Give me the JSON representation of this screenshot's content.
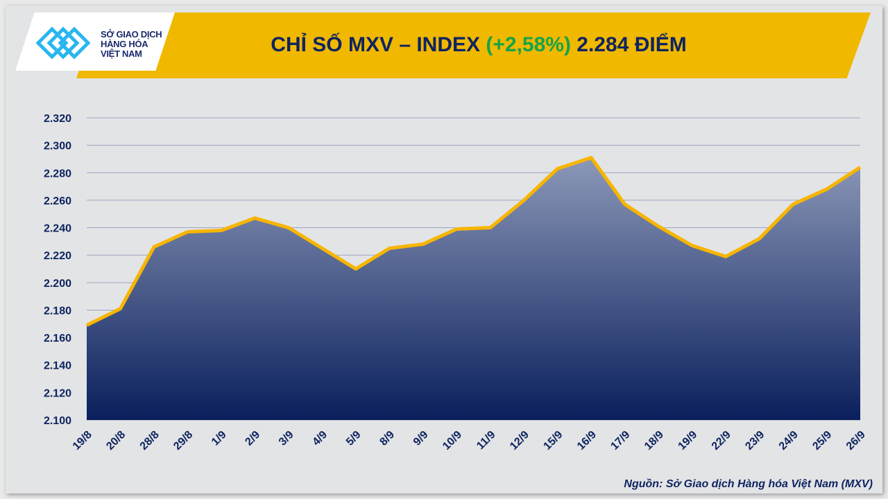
{
  "header": {
    "logo_lines": [
      "SỞ GIAO DỊCH",
      "HÀNG HÓA",
      "VIỆT NAM"
    ],
    "title_prefix": "CHỈ SỐ MXV – INDEX ",
    "title_change": "(+2,58%)",
    "title_suffix": " 2.284 ĐIỂM"
  },
  "source": "Nguồn: Sở Giao dịch Hàng hóa Việt Nam (MXV)",
  "colors": {
    "banner": "#f1b800",
    "line": "#f7b500",
    "fill_top": "#8c98b8",
    "fill_bottom": "#0a1f5c",
    "positive": "#16a34a",
    "text": "#0f2460"
  },
  "chart_data": {
    "type": "area",
    "title": "CHỈ SỐ MXV – INDEX (+2,58%) 2.284 ĐIỂM",
    "categories": [
      "19/8",
      "20/8",
      "28/8",
      "29/8",
      "1/9",
      "2/9",
      "3/9",
      "4/9",
      "5/9",
      "8/9",
      "9/9",
      "10/9",
      "11/9",
      "12/9",
      "15/9",
      "16/9",
      "17/9",
      "18/9",
      "19/9",
      "22/9",
      "23/9",
      "24/9",
      "25/9",
      "26/9"
    ],
    "values": [
      2169,
      2181,
      2226,
      2237,
      2238,
      2247,
      2240,
      2225,
      2210,
      2225,
      2228,
      2239,
      2240,
      2260,
      2283,
      2291,
      2257,
      2241,
      2227,
      2219,
      2232,
      2257,
      2268,
      2284
    ],
    "ylim": [
      2100,
      2320
    ],
    "yticks": [
      "2.100",
      "2.120",
      "2.140",
      "2.160",
      "2.180",
      "2.200",
      "2.220",
      "2.240",
      "2.260",
      "2.280",
      "2.300",
      "2.320"
    ],
    "grid": true,
    "legend": "none"
  }
}
